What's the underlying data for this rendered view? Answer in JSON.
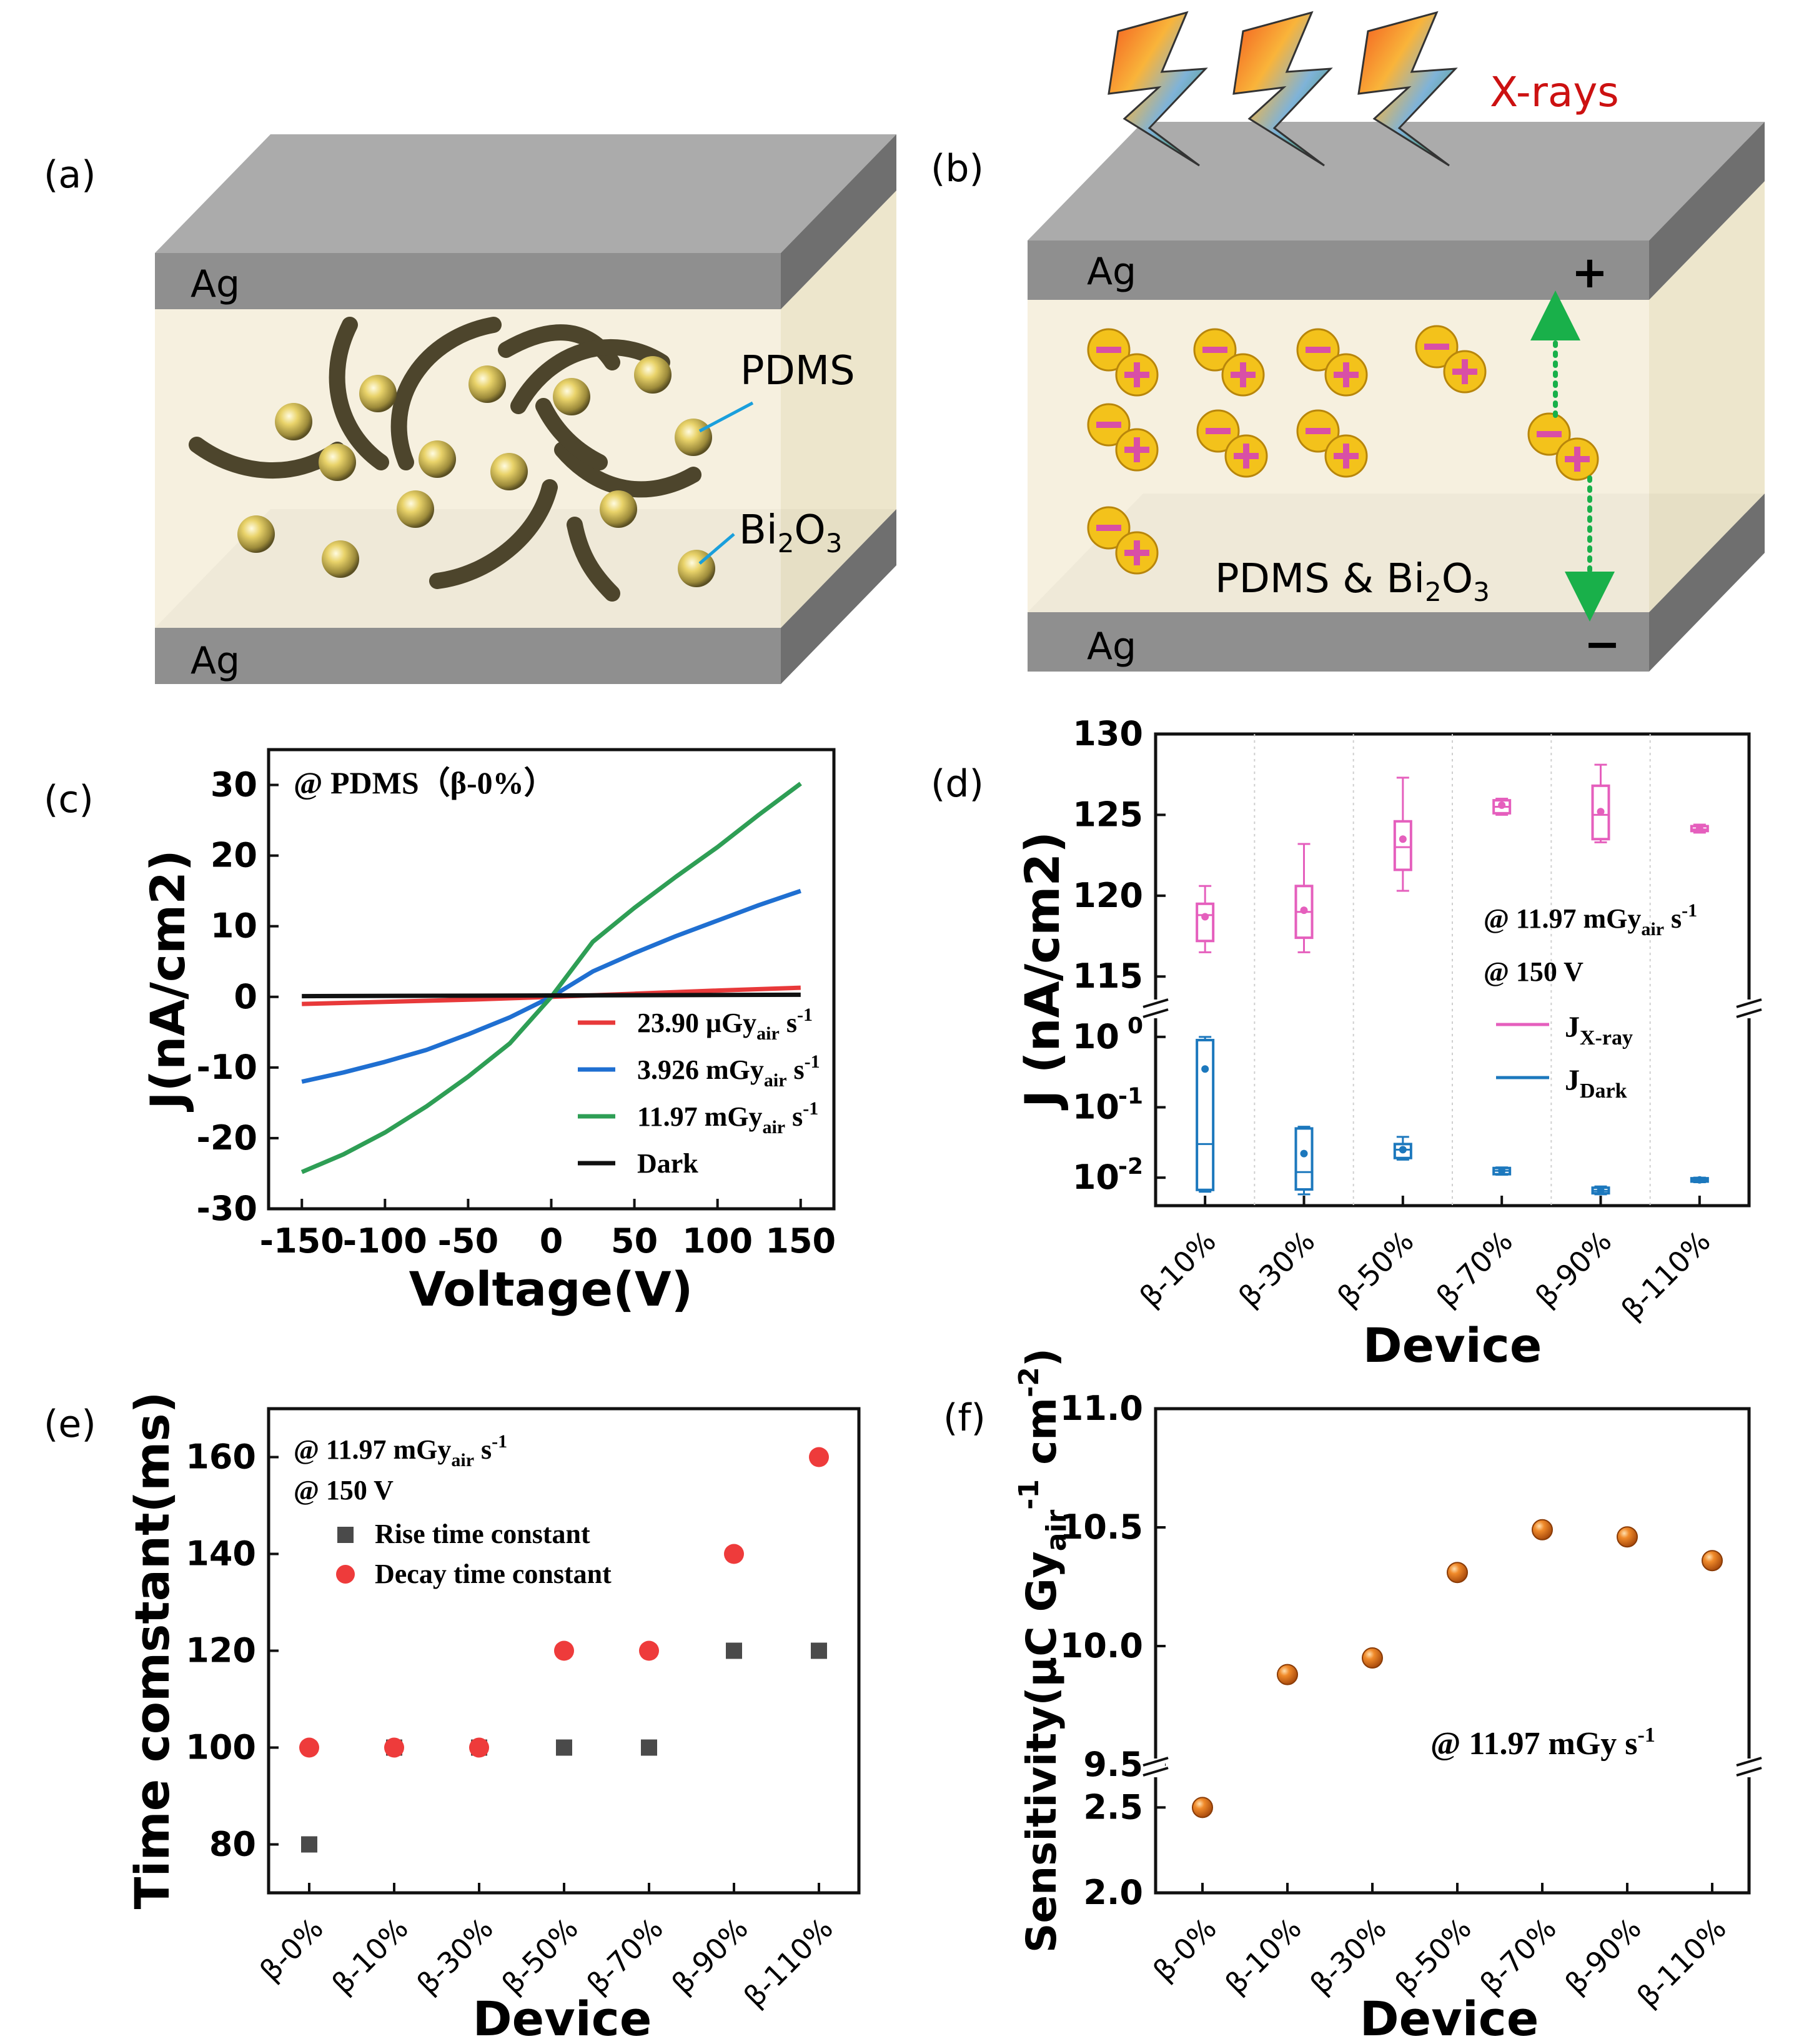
{
  "panels": {
    "a": {
      "label": "(a)",
      "electrode_top": "Ag",
      "electrode_bottom": "Ag",
      "label_pdms": "PDMS",
      "label_bi_main": "Bi",
      "label_bi_sub1": "2",
      "label_bi_o": "O",
      "label_bi_sub2": "3"
    },
    "b": {
      "label": "(b)",
      "electrode_top": "Ag",
      "electrode_bottom": "Ag",
      "xray_label": "X-rays",
      "plus_sign": "+",
      "minus_sign": "−",
      "mix_main": "PDMS & Bi",
      "mix_sub1": "2",
      "mix_o": "O",
      "mix_sub2": "3"
    }
  },
  "chart_data": [
    {
      "panel": "(c)",
      "type": "line",
      "annotation": "@ PDMS（β-0%）",
      "xlabel": "Voltage(V)",
      "ylabel": "J(nA/cm2)",
      "xlim": [
        -170,
        170
      ],
      "ylim": [
        -30,
        35
      ],
      "xticks": [
        -150,
        -100,
        -50,
        0,
        50,
        100,
        150
      ],
      "yticks": [
        -30,
        -20,
        -10,
        0,
        10,
        20,
        30
      ],
      "series": [
        {
          "name": "23.90 μGy",
          "sub": "air",
          "unit": " s",
          "sup": "-1",
          "color": "#e8393a",
          "x": [
            -150,
            -100,
            -50,
            0,
            50,
            100,
            150
          ],
          "y": [
            -1.0,
            -0.7,
            -0.4,
            0,
            0.45,
            0.9,
            1.3
          ]
        },
        {
          "name": "3.926 mGy",
          "sub": "air",
          "unit": " s",
          "sup": "-1",
          "color": "#1f6fd1",
          "x": [
            -150,
            -125,
            -100,
            -75,
            -50,
            -25,
            0,
            25,
            50,
            75,
            100,
            125,
            150
          ],
          "y": [
            -12,
            -10.7,
            -9.2,
            -7.5,
            -5.3,
            -2.9,
            0,
            3.6,
            6.2,
            8.6,
            10.8,
            13.0,
            15.0
          ]
        },
        {
          "name": "11.97 mGy",
          "sub": "air",
          "unit": " s",
          "sup": "-1",
          "color": "#2e9e55",
          "x": [
            -150,
            -125,
            -100,
            -75,
            -50,
            -25,
            0,
            25,
            50,
            75,
            100,
            125,
            150
          ],
          "y": [
            -24.8,
            -22.3,
            -19.2,
            -15.5,
            -11.3,
            -6.6,
            0,
            7.8,
            12.6,
            17.0,
            21.2,
            25.8,
            30.2
          ]
        },
        {
          "name": "Dark",
          "sub": "",
          "unit": "",
          "sup": "",
          "color": "#111111",
          "x": [
            -150,
            150
          ],
          "y": [
            0.1,
            0.3
          ]
        }
      ]
    },
    {
      "panel": "(d)",
      "type": "box",
      "categories": [
        "β-10%",
        "β-30%",
        "β-50%",
        "β-70%",
        "β-90%",
        "β-110%"
      ],
      "xlabel": "Device",
      "ylabel": "J (nA/cm2)",
      "annotation_dose": "@ 11.97 mGy",
      "annotation_dose_sub": "air",
      "annotation_dose_unit": " s",
      "annotation_dose_sup": "-1",
      "annotation_bias": "@ 150 V",
      "upper_axis": {
        "ylim": [
          113,
          130
        ],
        "yticks": [
          115,
          120,
          125,
          130
        ]
      },
      "lower_axis": {
        "scale": "log",
        "ylim": [
          0.004,
          2.5
        ],
        "yticks": [
          1,
          0.1,
          0.01
        ],
        "ytick_labels": [
          "10",
          "10",
          "10"
        ],
        "ytick_exps": [
          "0",
          "-1",
          "-2"
        ]
      },
      "series": [
        {
          "name": "J",
          "sub": "X-ray",
          "color": "#e55fbd",
          "boxes": [
            {
              "min": 116.5,
              "q1": 117.2,
              "median": 118.8,
              "q3": 119.5,
              "max": 120.6,
              "mean": 118.7
            },
            {
              "min": 116.5,
              "q1": 117.4,
              "median": 119.0,
              "q3": 120.6,
              "max": 123.2,
              "mean": 119.1
            },
            {
              "min": 120.3,
              "q1": 121.6,
              "median": 123.0,
              "q3": 124.6,
              "max": 127.3,
              "mean": 123.5
            },
            {
              "min": 125.0,
              "q1": 125.1,
              "median": 125.5,
              "q3": 125.9,
              "max": 126.0,
              "mean": 125.6
            },
            {
              "min": 123.3,
              "q1": 123.5,
              "median": 125.0,
              "q3": 126.8,
              "max": 128.1,
              "mean": 125.2
            },
            {
              "min": 123.9,
              "q1": 124.0,
              "median": 124.1,
              "q3": 124.3,
              "max": 124.4,
              "mean": 124.15
            }
          ]
        },
        {
          "name": "J",
          "sub": "Dark",
          "color": "#1c78bd",
          "boxes": [
            {
              "min": 0.0063,
              "q1": 0.0067,
              "median": 0.03,
              "q3": 0.9,
              "max": 1.0,
              "mean": 0.35
            },
            {
              "min": 0.0058,
              "q1": 0.0068,
              "median": 0.012,
              "q3": 0.05,
              "max": 0.053,
              "mean": 0.022
            },
            {
              "min": 0.018,
              "q1": 0.019,
              "median": 0.025,
              "q3": 0.03,
              "max": 0.038,
              "mean": 0.025
            },
            {
              "min": 0.011,
              "q1": 0.0112,
              "median": 0.0125,
              "q3": 0.0137,
              "max": 0.014,
              "mean": 0.0125
            },
            {
              "min": 0.0058,
              "q1": 0.006,
              "median": 0.0065,
              "q3": 0.0072,
              "max": 0.0075,
              "mean": 0.0066
            },
            {
              "min": 0.0086,
              "q1": 0.0088,
              "median": 0.0093,
              "q3": 0.0098,
              "max": 0.01,
              "mean": 0.0093
            }
          ]
        }
      ]
    },
    {
      "panel": "(e)",
      "type": "scatter",
      "categories": [
        "β-0%",
        "β-10%",
        "β-30%",
        "β-50%",
        "β-70%",
        "β-90%",
        "β-110%"
      ],
      "xlabel": "Device",
      "ylabel": "Time comstant(ms)",
      "ylim": [
        70,
        170
      ],
      "yticks": [
        80,
        100,
        120,
        140,
        160
      ],
      "annotation_dose": "@ 11.97 mGy",
      "annotation_dose_sub": "air",
      "annotation_dose_unit": " s",
      "annotation_dose_sup": "-1",
      "annotation_bias": "@ 150 V",
      "series": [
        {
          "name": "Rise time constant",
          "marker": "square",
          "color": "#4a4a4a",
          "values": [
            80,
            100,
            100,
            100,
            100,
            120,
            120
          ]
        },
        {
          "name": "Decay time constant",
          "marker": "circle",
          "color": "#ee3b3b",
          "values": [
            100,
            100,
            100,
            120,
            120,
            140,
            160
          ]
        }
      ]
    },
    {
      "panel": "(f)",
      "type": "scatter",
      "categories": [
        "β-0%",
        "β-10%",
        "β-30%",
        "β-50%",
        "β-70%",
        "β-90%",
        "β-110%"
      ],
      "xlabel": "Device",
      "ylabel": "Sensitivity(μC Gy",
      "ylabel_sub": "air",
      "ylabel_sup1": "-1",
      "ylabel_mid": " cm",
      "ylabel_sup2": "-2",
      "ylabel_close": ")",
      "annotation": "@ 11.97 mGy s",
      "annotation_sup": "-1",
      "upper_axis": {
        "ylim": [
          9.5,
          11.0
        ],
        "yticks": [
          9.5,
          10.0,
          10.5,
          11.0
        ],
        "ytick_labels": [
          "9.5",
          "10.0",
          "10.5",
          "11.0"
        ]
      },
      "lower_axis": {
        "ylim": [
          2.0,
          2.75
        ],
        "yticks": [
          2.0,
          2.5
        ],
        "ytick_labels": [
          "2.0",
          "2.5"
        ]
      },
      "series": [
        {
          "name": "Sensitivity",
          "color": "#d2691e",
          "values": [
            2.5,
            9.88,
            9.95,
            10.31,
            10.49,
            10.46,
            10.36
          ]
        }
      ]
    }
  ]
}
